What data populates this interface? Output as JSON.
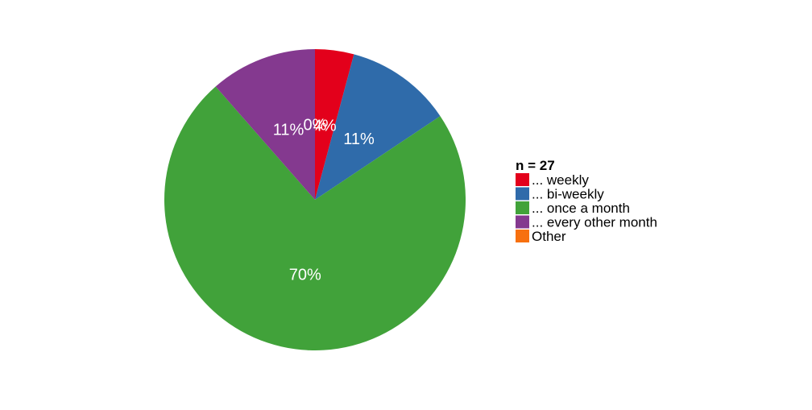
{
  "chart_data": {
    "type": "pie",
    "legend_title": "n = 27",
    "legend_position": "right",
    "slices": [
      {
        "label": "... weekly",
        "value": 4,
        "display": "4%",
        "color": "#E3001B"
      },
      {
        "label": "... bi-weekly",
        "value": 11,
        "display": "11%",
        "color": "#2F6BAA"
      },
      {
        "label": "... once a month",
        "value": 70,
        "display": "70%",
        "color": "#41A23A"
      },
      {
        "label": "... every other month",
        "value": 11,
        "display": "11%",
        "color": "#84398F"
      },
      {
        "label": "Other",
        "value": 0,
        "display": "0%",
        "color": "#F7700F"
      }
    ],
    "direction": "clockwise",
    "start_angle": "12 o'clock"
  }
}
